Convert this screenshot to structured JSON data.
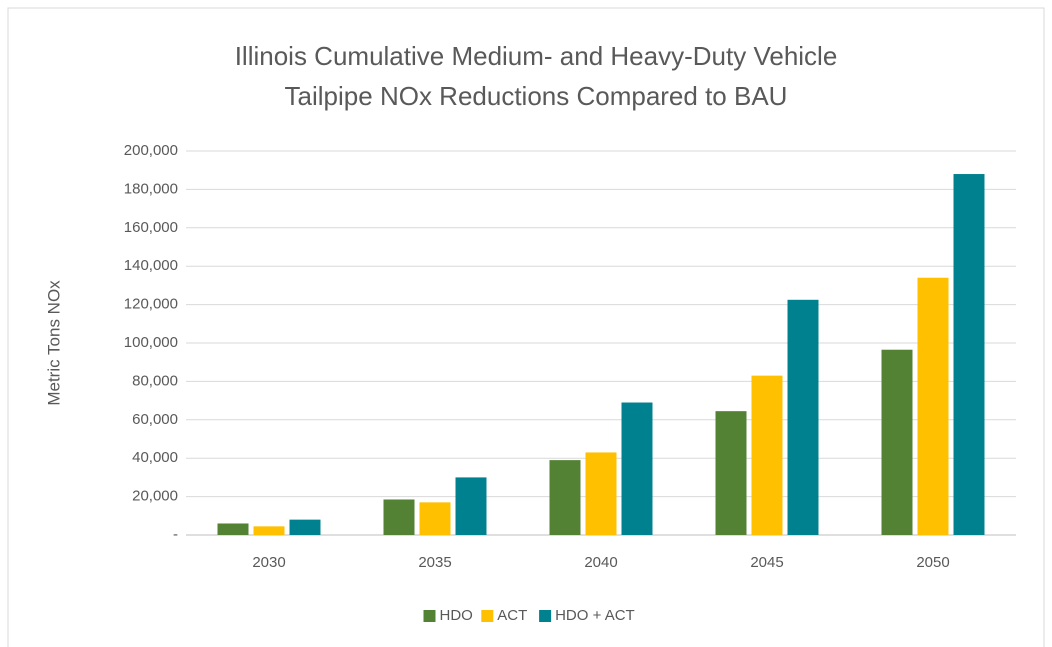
{
  "chart_data": {
    "type": "bar",
    "title": [
      "Illinois Cumulative Medium- and Heavy-Duty Vehicle",
      "Tailpipe NOx Reductions Compared to BAU"
    ],
    "y_label": "Metric Tons NOx",
    "categories": [
      "2030",
      "2035",
      "2040",
      "2045",
      "2050"
    ],
    "series": [
      {
        "name": "HDO",
        "color": "#548235",
        "values": [
          6000,
          18500,
          39000,
          64500,
          96500
        ]
      },
      {
        "name": "ACT",
        "color": "#ffc000",
        "values": [
          4500,
          17000,
          43000,
          83000,
          134000
        ]
      },
      {
        "name": "HDO + ACT",
        "color": "#00818f",
        "values": [
          8000,
          30000,
          69000,
          122500,
          188000
        ]
      }
    ],
    "ylim": [
      0,
      200000
    ],
    "yticks": [
      {
        "value": 0,
        "label": "-"
      },
      {
        "value": 20000,
        "label": "20,000"
      },
      {
        "value": 40000,
        "label": "40,000"
      },
      {
        "value": 60000,
        "label": "60,000"
      },
      {
        "value": 80000,
        "label": "80,000"
      },
      {
        "value": 100000,
        "label": "100,000"
      },
      {
        "value": 120000,
        "label": "120,000"
      },
      {
        "value": 140000,
        "label": "140,000"
      },
      {
        "value": 160000,
        "label": "160,000"
      },
      {
        "value": 180000,
        "label": "180,000"
      },
      {
        "value": 200000,
        "label": "200,000"
      }
    ],
    "grid": true,
    "legend": "bottom"
  }
}
